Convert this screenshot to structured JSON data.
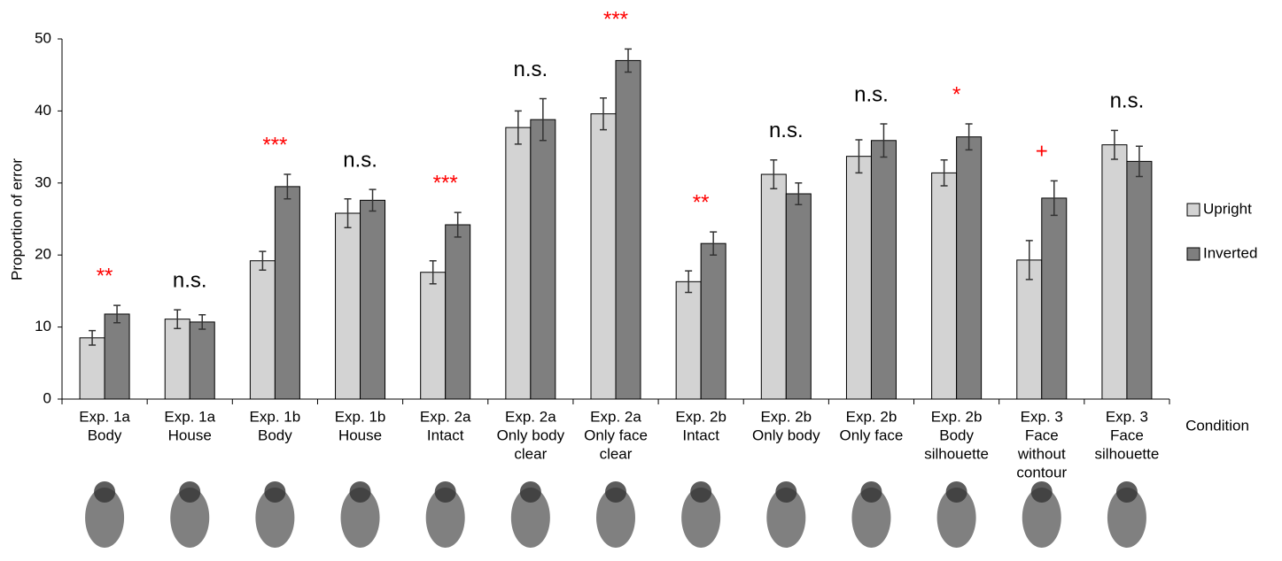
{
  "chart_data": {
    "type": "bar",
    "y_label": "Proportion of error",
    "x_label": "Condition",
    "categories": [
      [
        "Exp. 1a",
        "Body"
      ],
      [
        "Exp. 1a",
        "House"
      ],
      [
        "Exp. 1b",
        "Body"
      ],
      [
        "Exp. 1b",
        "House"
      ],
      [
        "Exp. 2a",
        "Intact"
      ],
      [
        "Exp. 2a",
        "Only body",
        "clear"
      ],
      [
        "Exp. 2a",
        "Only face",
        "clear"
      ],
      [
        "Exp. 2b",
        "Intact"
      ],
      [
        "Exp. 2b",
        "Only body"
      ],
      [
        "Exp. 2b",
        "Only face"
      ],
      [
        "Exp. 2b",
        "Body",
        "silhouette"
      ],
      [
        "Exp. 3",
        "Face",
        "without",
        "contour"
      ],
      [
        "Exp. 3",
        "Face",
        "silhouette"
      ]
    ],
    "series": [
      {
        "name": "Upright",
        "color": "#d3d3d3",
        "values": [
          8.5,
          11.1,
          19.2,
          25.8,
          17.6,
          37.7,
          39.6,
          16.3,
          31.2,
          33.7,
          31.4,
          19.3,
          35.3
        ],
        "errors": [
          1.0,
          1.3,
          1.3,
          2.0,
          1.6,
          2.3,
          2.2,
          1.5,
          2.0,
          2.3,
          1.8,
          2.7,
          2.0
        ]
      },
      {
        "name": "Inverted",
        "color": "#7f7f7f",
        "values": [
          11.8,
          10.7,
          29.5,
          27.6,
          24.2,
          38.8,
          47.0,
          21.6,
          28.5,
          35.9,
          36.4,
          27.9,
          33.0
        ],
        "errors": [
          1.2,
          1.0,
          1.7,
          1.5,
          1.7,
          2.9,
          1.6,
          1.6,
          1.5,
          2.3,
          1.8,
          2.4,
          2.1
        ]
      }
    ],
    "annotations": [
      {
        "text": "**",
        "color": "#ff0000"
      },
      {
        "text": "n.s.",
        "color": "#000000"
      },
      {
        "text": "***",
        "color": "#ff0000"
      },
      {
        "text": "n.s.",
        "color": "#000000"
      },
      {
        "text": "***",
        "color": "#ff0000"
      },
      {
        "text": "n.s.",
        "color": "#000000"
      },
      {
        "text": "***",
        "color": "#ff0000"
      },
      {
        "text": "**",
        "color": "#ff0000"
      },
      {
        "text": "n.s.",
        "color": "#000000"
      },
      {
        "text": "n.s.",
        "color": "#000000"
      },
      {
        "text": "*",
        "color": "#ff0000"
      },
      {
        "text": "+",
        "color": "#ff0000"
      },
      {
        "text": "n.s.",
        "color": "#000000"
      }
    ],
    "ylim": [
      0,
      50
    ],
    "yticks": [
      0,
      10,
      20,
      30,
      40,
      50
    ],
    "grid": false,
    "legend": "right"
  }
}
